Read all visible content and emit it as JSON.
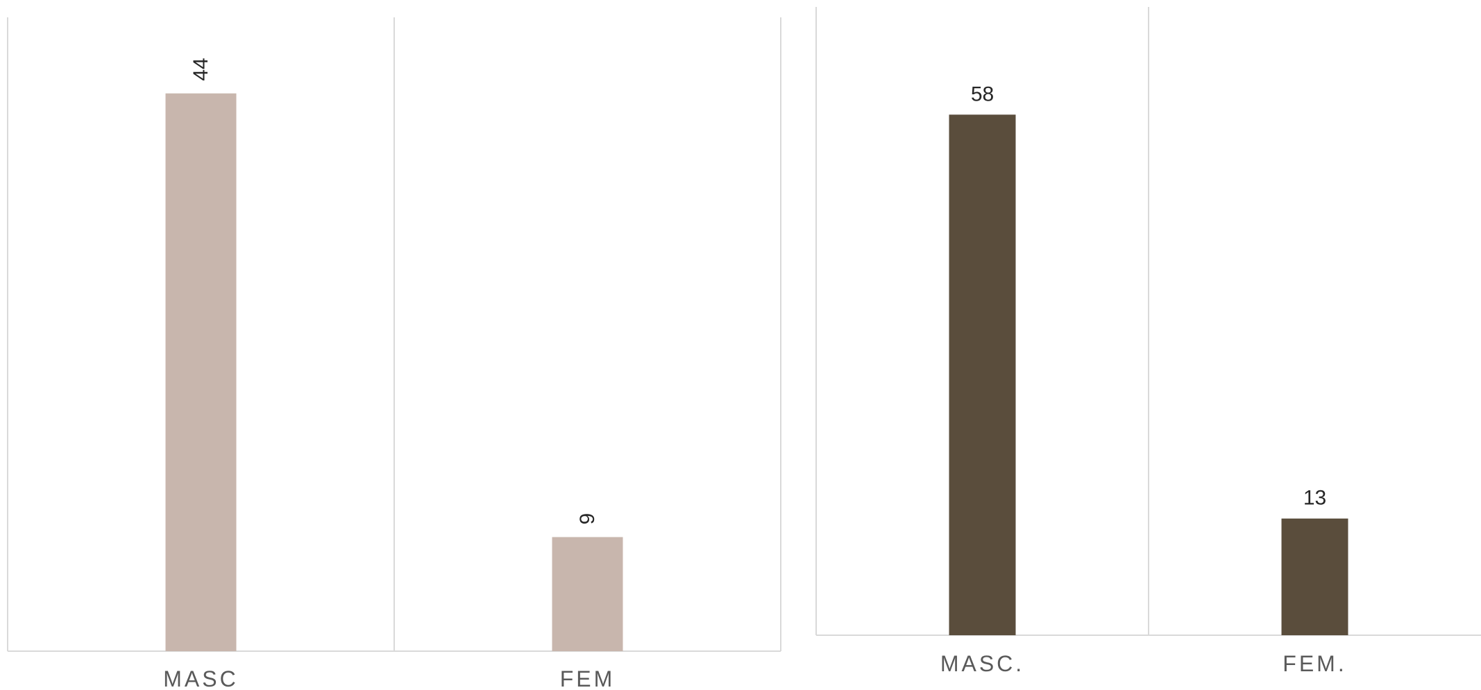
{
  "chart_data": [
    {
      "type": "bar",
      "categories": [
        "MASC",
        "FEM"
      ],
      "values": [
        44,
        9
      ],
      "data_labels": [
        "44",
        "9"
      ],
      "data_label_rotation": "vertical",
      "ylim": [
        0,
        50
      ],
      "color": "#c8b6ad",
      "grid": true,
      "title": "",
      "xlabel": "",
      "ylabel": ""
    },
    {
      "type": "bar",
      "categories": [
        "MASC.",
        "FEM."
      ],
      "values": [
        58,
        13
      ],
      "data_labels": [
        "58",
        "13"
      ],
      "data_label_rotation": "horizontal",
      "ylim": [
        0,
        70
      ],
      "color": "#5a4d3c",
      "grid": true,
      "title": "",
      "xlabel": "",
      "ylabel": ""
    }
  ]
}
